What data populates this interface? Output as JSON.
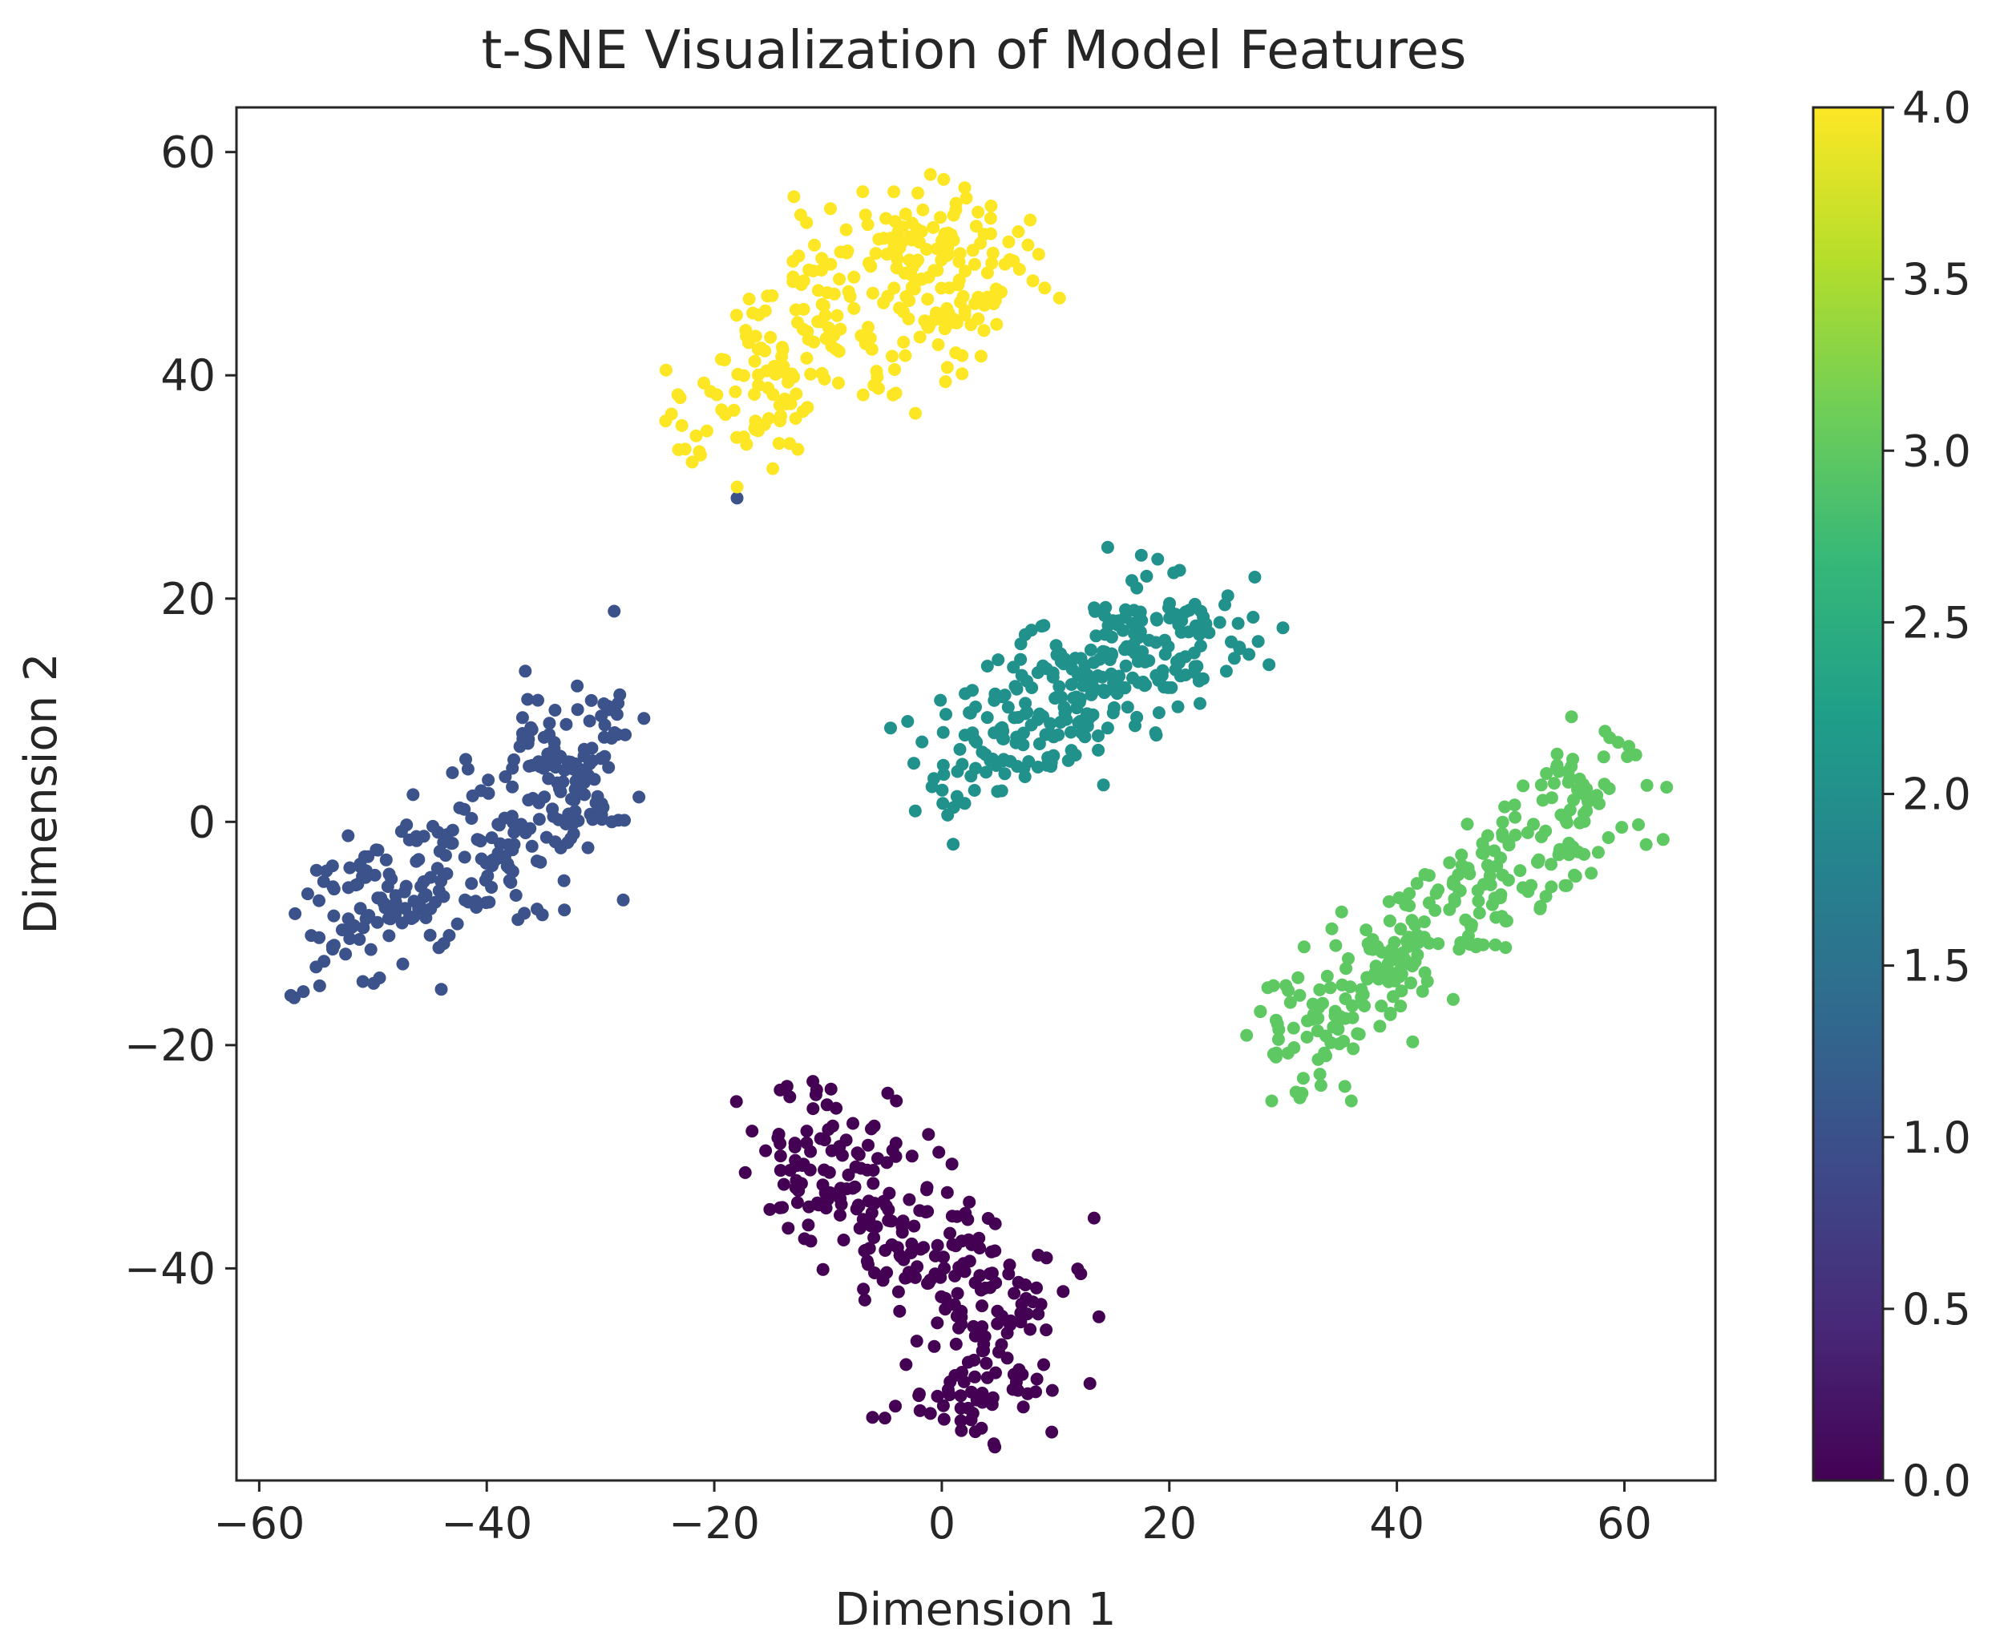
{
  "chart_data": {
    "type": "scatter",
    "title": "t-SNE Visualization of Model Features",
    "xlabel": "Dimension 1",
    "ylabel": "Dimension 2",
    "xlim": [
      -62,
      68
    ],
    "ylim": [
      -59,
      64
    ],
    "x_ticks": [
      -60,
      -40,
      -20,
      0,
      20,
      40,
      60
    ],
    "x_tick_labels": [
      "−60",
      "−40",
      "−20",
      "0",
      "20",
      "40",
      "60"
    ],
    "y_ticks": [
      -40,
      -20,
      0,
      20,
      40,
      60
    ],
    "y_tick_labels": [
      "−40",
      "−20",
      "0",
      "20",
      "40",
      "60"
    ],
    "grid": false,
    "colormap": "viridis",
    "colorbar": {
      "range": [
        0.0,
        4.0
      ],
      "ticks": [
        0.0,
        0.5,
        1.0,
        1.5,
        2.0,
        2.5,
        3.0,
        3.5,
        4.0
      ],
      "tick_labels": [
        "0.0",
        "0.5",
        "1.0",
        "1.5",
        "2.0",
        "2.5",
        "3.0",
        "3.5",
        "4.0"
      ],
      "stops": [
        "#440154",
        "#482878",
        "#3e4989",
        "#31688e",
        "#26828e",
        "#1f9e89",
        "#35b779",
        "#6ece58",
        "#b5de2b",
        "#fde725"
      ]
    },
    "series": [
      {
        "name": "0",
        "value": 0,
        "color": "#440154",
        "spine": [
          [
            -12,
            -27
          ],
          [
            -9,
            -32
          ],
          [
            -5,
            -36
          ],
          [
            0,
            -39
          ],
          [
            3,
            -42
          ],
          [
            6,
            -45
          ],
          [
            4,
            -49
          ],
          [
            0,
            -52
          ]
        ],
        "spread": [
          4.5,
          3.5
        ],
        "n": 300,
        "seed": 11,
        "extras": [
          [
            -11,
            -24
          ],
          [
            -4,
            -25
          ],
          [
            8,
            -43
          ],
          [
            -1,
            -53
          ]
        ]
      },
      {
        "name": "1",
        "value": 1,
        "color": "#3b528b",
        "spine": [
          [
            -53,
            -9
          ],
          [
            -48,
            -7
          ],
          [
            -43,
            -5
          ],
          [
            -39,
            -2
          ],
          [
            -35,
            1
          ],
          [
            -32,
            5
          ],
          [
            -33,
            9
          ]
        ],
        "spread": [
          4.0,
          4.0
        ],
        "n": 300,
        "seed": 23,
        "extras": [
          [
            -55,
            -13
          ],
          [
            -44,
            -15
          ],
          [
            -29,
            0
          ],
          [
            -28,
            -7
          ],
          [
            -34,
            10
          ],
          [
            -18,
            29
          ]
        ]
      },
      {
        "name": "2",
        "value": 2,
        "color": "#21918c",
        "spine": [
          [
            1,
            5
          ],
          [
            5,
            7
          ],
          [
            9,
            9
          ],
          [
            13,
            12
          ],
          [
            17,
            15
          ],
          [
            21,
            17
          ],
          [
            24,
            17
          ]
        ],
        "spread": [
          4.5,
          3.5
        ],
        "n": 300,
        "seed": 37,
        "extras": [
          [
            18,
            22
          ],
          [
            27,
            15
          ],
          [
            1,
            -2
          ],
          [
            -3,
            9
          ]
        ]
      },
      {
        "name": "3",
        "value": 3,
        "color": "#5ec962",
        "spine": [
          [
            31,
            -22
          ],
          [
            33,
            -18
          ],
          [
            37,
            -14
          ],
          [
            42,
            -10
          ],
          [
            47,
            -6
          ],
          [
            52,
            -3
          ],
          [
            56,
            1
          ],
          [
            59,
            5
          ]
        ],
        "spread": [
          3.5,
          3.0
        ],
        "n": 300,
        "seed": 53,
        "extras": [
          [
            29,
            -25
          ],
          [
            61,
            6
          ],
          [
            36,
            -25
          ],
          [
            28,
            -17
          ]
        ]
      },
      {
        "name": "4",
        "value": 4,
        "color": "#fde725",
        "spine": [
          [
            -18,
            34
          ],
          [
            -16,
            40
          ],
          [
            -12,
            45
          ],
          [
            -8,
            49
          ],
          [
            -3,
            52
          ],
          [
            1,
            54
          ],
          [
            3,
            50
          ],
          [
            0,
            44
          ],
          [
            -6,
            42
          ]
        ],
        "spread": [
          4.5,
          3.5
        ],
        "n": 300,
        "seed": 71,
        "extras": [
          [
            -13,
            56
          ],
          [
            -1,
            58
          ],
          [
            4,
            47
          ],
          [
            -23,
            38
          ],
          [
            -18,
            30
          ]
        ]
      }
    ]
  }
}
